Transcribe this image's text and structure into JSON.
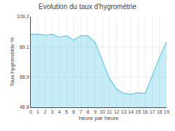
{
  "chart_data": {
    "type": "area",
    "title": "Evolution du taux d'hygrométrie",
    "xlabel": "heure par heure",
    "ylabel": "Taux hygrométrie %",
    "x": [
      0,
      1,
      2,
      3,
      4,
      5,
      6,
      7,
      8,
      9,
      10,
      11,
      12,
      13,
      14,
      15,
      16,
      17,
      18,
      19
    ],
    "values": [
      97.5,
      97.5,
      97.0,
      97.5,
      95.5,
      96.5,
      93.5,
      96.5,
      96.5,
      92.0,
      80.0,
      68.0,
      61.0,
      58.0,
      57.5,
      58.5,
      58.0,
      70.0,
      82.0,
      92.5
    ],
    "color": "#5bc8e8",
    "xlim": [
      0,
      19
    ],
    "xticks": [
      0,
      1,
      2,
      3,
      4,
      5,
      6,
      7,
      8,
      9,
      10,
      11,
      12,
      13,
      14,
      15,
      16,
      17,
      18,
      19
    ],
    "ylim": [
      48.8,
      109.2
    ],
    "yticks": [
      48.8,
      68.9,
      89.1,
      109.2
    ],
    "grid": true
  }
}
